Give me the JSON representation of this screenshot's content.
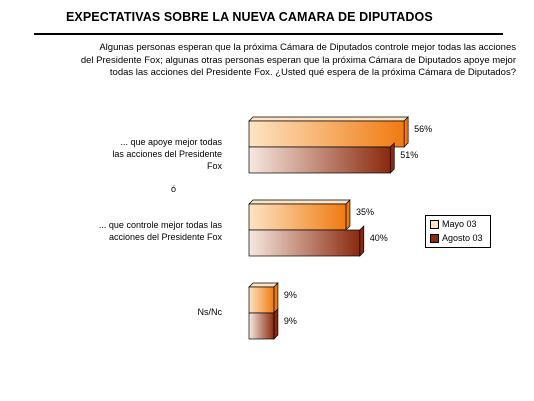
{
  "header": {
    "title": "EXPECTATIVAS SOBRE LA NUEVA CAMARA DE DIPUTADOS",
    "question_lines": [
      "Algunas personas esperan que la próxima Cámara de Diputados controle mejor todas las acciones",
      "del Presidente Fox; algunas otras personas esperan que la próxima Cámara de Diputados apoye mejor",
      "todas las acciones del Presidente Fox. ¿Usted qué espera de la próxima Cámara de Diputados?"
    ]
  },
  "separator_text": "ó",
  "colors": {
    "mayo_light": "#fde4c4",
    "mayo_dark": "#f07a10",
    "agosto_light": "#f7e8e0",
    "agosto_dark": "#8a2a0e"
  },
  "chart_data": {
    "type": "bar",
    "orientation": "horizontal",
    "categories": [
      [
        "... que apoye mejor todas",
        "las acciones del Presidente",
        "Fox"
      ],
      [
        "... que controle mejor todas las",
        "acciones del Presidente Fox"
      ],
      [
        "Ns/Nc"
      ]
    ],
    "series": [
      {
        "name": "Mayo 03",
        "values": [
          56,
          35,
          9
        ],
        "labels": [
          "56%",
          "35%",
          "9%"
        ]
      },
      {
        "name": "Agosto 03",
        "values": [
          51,
          40,
          9
        ],
        "labels": [
          "51%",
          "40%",
          "9%"
        ]
      }
    ],
    "legend_position": "right",
    "grid": false
  }
}
